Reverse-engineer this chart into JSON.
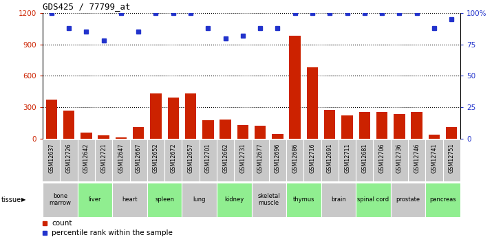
{
  "title": "GDS425 / 77799_at",
  "samples": [
    "GSM12637",
    "GSM12726",
    "GSM12642",
    "GSM12721",
    "GSM12647",
    "GSM12667",
    "GSM12652",
    "GSM12672",
    "GSM12657",
    "GSM12701",
    "GSM12662",
    "GSM12731",
    "GSM12677",
    "GSM12696",
    "GSM12686",
    "GSM12716",
    "GSM12691",
    "GSM12711",
    "GSM12681",
    "GSM12706",
    "GSM12736",
    "GSM12746",
    "GSM12741",
    "GSM12751"
  ],
  "counts": [
    370,
    270,
    60,
    30,
    15,
    110,
    430,
    390,
    430,
    175,
    185,
    130,
    125,
    45,
    980,
    680,
    275,
    220,
    255,
    255,
    235,
    255,
    40,
    110
  ],
  "percentiles": [
    100,
    88,
    85,
    78,
    100,
    85,
    100,
    100,
    100,
    88,
    80,
    82,
    88,
    88,
    100,
    100,
    100,
    100,
    100,
    100,
    100,
    100,
    88,
    95
  ],
  "tissues": [
    {
      "label": "bone\nmarrow",
      "start": 0,
      "end": 2,
      "color": "#c8c8c8"
    },
    {
      "label": "liver",
      "start": 2,
      "end": 4,
      "color": "#90ee90"
    },
    {
      "label": "heart",
      "start": 4,
      "end": 6,
      "color": "#c8c8c8"
    },
    {
      "label": "spleen",
      "start": 6,
      "end": 8,
      "color": "#90ee90"
    },
    {
      "label": "lung",
      "start": 8,
      "end": 10,
      "color": "#c8c8c8"
    },
    {
      "label": "kidney",
      "start": 10,
      "end": 12,
      "color": "#90ee90"
    },
    {
      "label": "skeletal\nmuscle",
      "start": 12,
      "end": 14,
      "color": "#c8c8c8"
    },
    {
      "label": "thymus",
      "start": 14,
      "end": 16,
      "color": "#90ee90"
    },
    {
      "label": "brain",
      "start": 16,
      "end": 18,
      "color": "#c8c8c8"
    },
    {
      "label": "spinal cord",
      "start": 18,
      "end": 20,
      "color": "#90ee90"
    },
    {
      "label": "prostate",
      "start": 20,
      "end": 22,
      "color": "#c8c8c8"
    },
    {
      "label": "pancreas",
      "start": 22,
      "end": 24,
      "color": "#90ee90"
    }
  ],
  "bar_color": "#cc2200",
  "dot_color": "#2233cc",
  "ylim_left": [
    0,
    1200
  ],
  "ylim_right": [
    0,
    100
  ],
  "yticks_left": [
    0,
    300,
    600,
    900,
    1200
  ],
  "yticks_right": [
    0,
    25,
    50,
    75,
    100
  ],
  "grid_color": "#000000",
  "bg_color": "#ffffff",
  "sample_bg_color": "#c8c8c8"
}
